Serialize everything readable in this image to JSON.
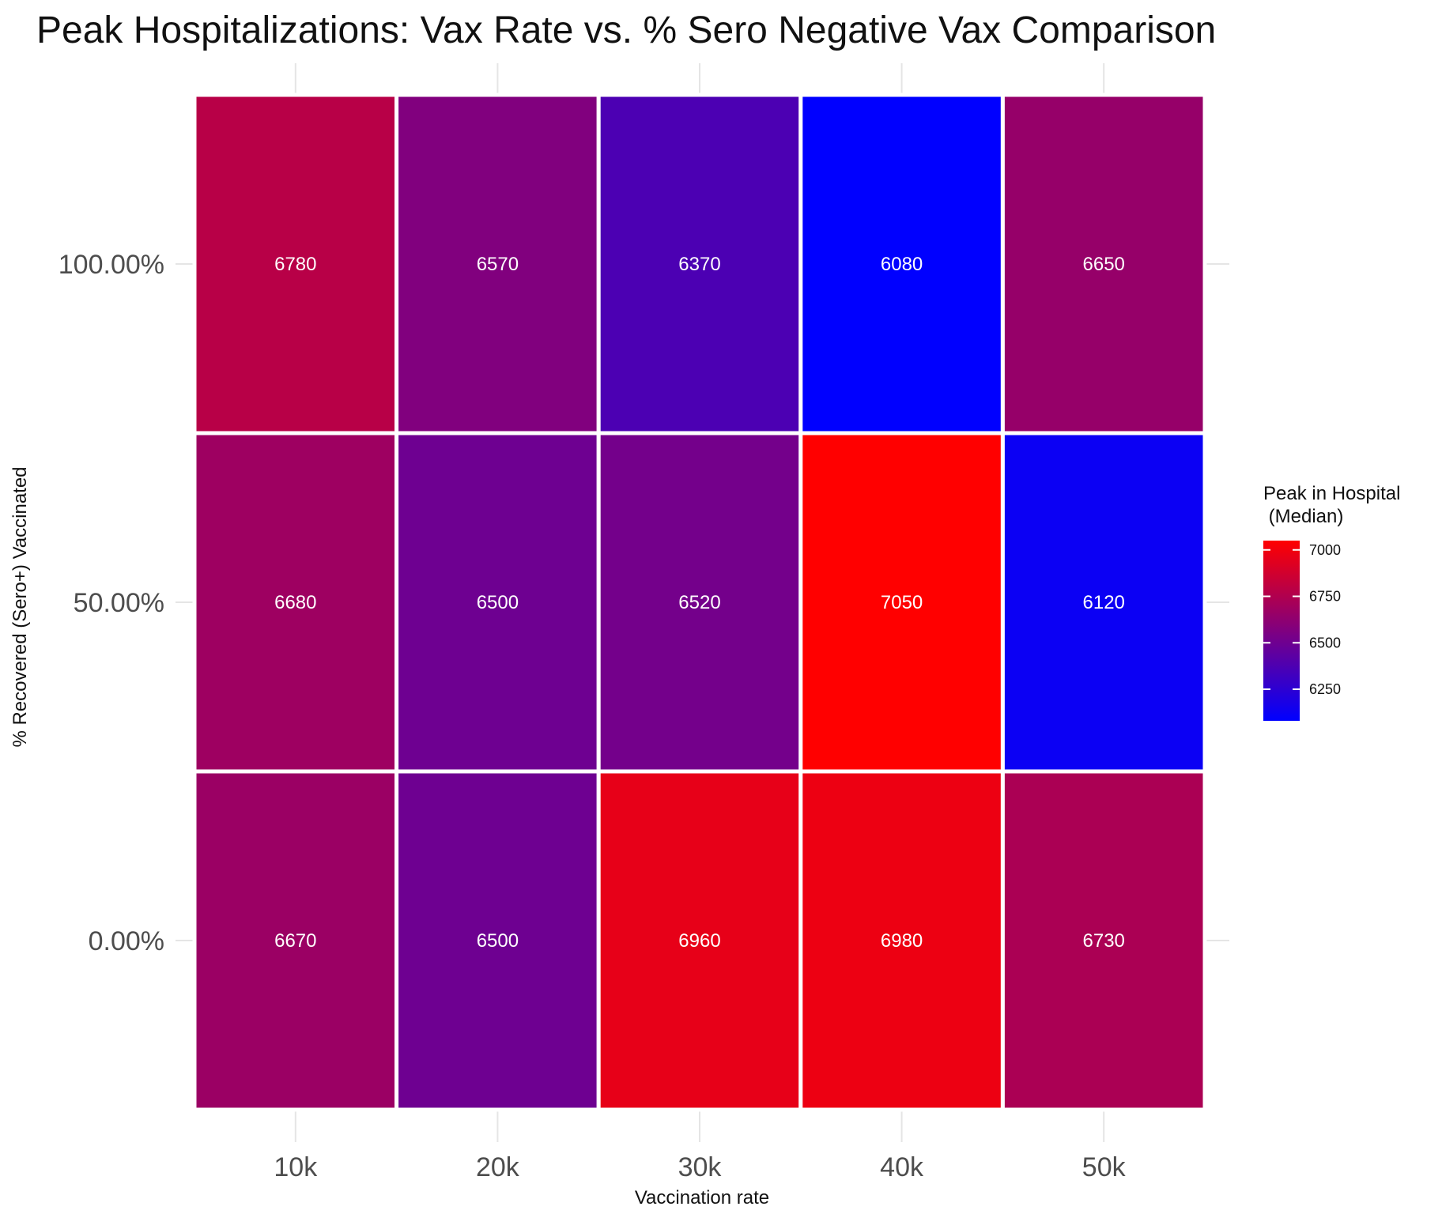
{
  "chart_data": {
    "type": "heatmap",
    "title": "Peak Hospitalizations: Vax Rate vs. % Sero Negative Vax Comparison",
    "xlabel": "Vaccination rate",
    "ylabel": "% Recovered (Sero+) Vaccinated",
    "x_categories": [
      "10k",
      "20k",
      "30k",
      "40k",
      "50k"
    ],
    "y_categories": [
      "100.00%",
      "50.00%",
      "0.00%"
    ],
    "values": [
      [
        6780,
        6570,
        6370,
        6080,
        6650
      ],
      [
        6680,
        6500,
        6520,
        7050,
        6120
      ],
      [
        6670,
        6500,
        6960,
        6980,
        6730
      ]
    ],
    "cell_labels_shown": true,
    "grid": true,
    "colorscale": {
      "low_color": "#0000ff",
      "high_color": "#ff0000",
      "min": 6080,
      "max": 7050
    },
    "legend": {
      "title_line1": "Peak in Hospital",
      "title_line2": " (Median)",
      "ticks": [
        7000,
        6750,
        6500,
        6250
      ],
      "placement": "right"
    }
  }
}
